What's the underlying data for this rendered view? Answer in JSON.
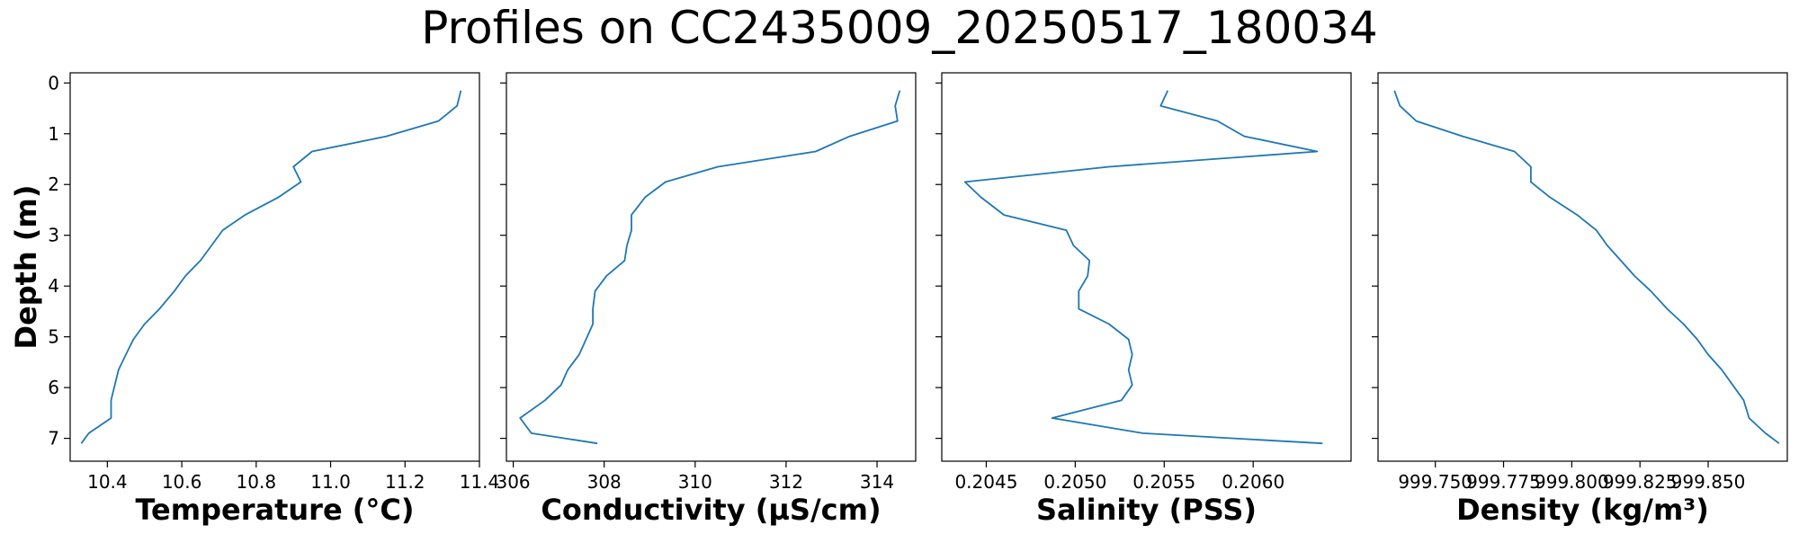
{
  "chart_data": {
    "title": "Profiles on CC2435009_20250517_180034",
    "ylabel": "Depth (m)",
    "y_axis": {
      "ticks": [
        0,
        1,
        2,
        3,
        4,
        5,
        6,
        7
      ],
      "tick_labels": [
        "0",
        "1",
        "2",
        "3",
        "4",
        "5",
        "6",
        "7"
      ],
      "ylim": [
        7.45,
        -0.2
      ],
      "inverted": true
    },
    "depth": [
      0.15,
      0.45,
      0.75,
      1.05,
      1.35,
      1.65,
      1.95,
      2.25,
      2.6,
      2.9,
      3.2,
      3.5,
      3.8,
      4.1,
      4.45,
      4.75,
      5.05,
      5.35,
      5.65,
      5.95,
      6.25,
      6.6,
      6.9,
      7.1
    ],
    "panels": [
      {
        "type": "line",
        "xlabel": "Temperature (°C)",
        "xlim": [
          10.3,
          11.4
        ],
        "x_ticks": [
          10.4,
          10.6,
          10.8,
          11.0,
          11.2,
          11.4
        ],
        "x_tick_labels": [
          "10.4",
          "10.6",
          "10.8",
          "11.0",
          "11.2",
          "11.4"
        ],
        "values": [
          11.35,
          11.34,
          11.29,
          11.15,
          10.95,
          10.9,
          10.92,
          10.86,
          10.77,
          10.71,
          10.68,
          10.65,
          10.61,
          10.58,
          10.54,
          10.5,
          10.47,
          10.45,
          10.43,
          10.42,
          10.41,
          10.41,
          10.35,
          10.33
        ],
        "color": "#1f77b4"
      },
      {
        "type": "line",
        "xlabel": "Conductivity (µS/cm)",
        "xlim": [
          305.85,
          314.85
        ],
        "x_ticks": [
          306,
          308,
          310,
          312,
          314
        ],
        "x_tick_labels": [
          "306",
          "308",
          "310",
          "312",
          "314"
        ],
        "values": [
          314.5,
          314.4,
          314.45,
          313.4,
          312.65,
          310.5,
          309.35,
          308.9,
          308.6,
          308.6,
          308.5,
          308.45,
          308.05,
          307.8,
          307.75,
          307.75,
          307.6,
          307.45,
          307.2,
          307.05,
          306.7,
          306.15,
          306.4,
          307.85
        ],
        "color": "#1f77b4"
      },
      {
        "type": "line",
        "xlabel": "Salinity (PSS)",
        "xlim": [
          0.20425,
          0.20655
        ],
        "x_ticks": [
          0.2045,
          0.205,
          0.2055,
          0.206
        ],
        "x_tick_labels": [
          "0.2045",
          "0.2050",
          "0.2055",
          "0.2060"
        ],
        "values": [
          0.20552,
          0.20548,
          0.2058,
          0.20595,
          0.20636,
          0.20519,
          0.20438,
          0.20447,
          0.2046,
          0.20495,
          0.20499,
          0.20508,
          0.20507,
          0.20502,
          0.20502,
          0.20519,
          0.2053,
          0.20532,
          0.2053,
          0.20532,
          0.20526,
          0.20487,
          0.20538,
          0.20639
        ],
        "color": "#1f77b4"
      },
      {
        "type": "line",
        "xlabel": "Density (kg/m³)",
        "xlim": [
          999.729,
          999.879
        ],
        "x_ticks": [
          999.75,
          999.775,
          999.8,
          999.825,
          999.85
        ],
        "x_tick_labels": [
          "999.750",
          "999.775",
          "999.800",
          "999.825",
          "999.850"
        ],
        "values": [
          999.735,
          999.737,
          999.743,
          999.76,
          999.779,
          999.785,
          999.785,
          999.792,
          999.802,
          999.809,
          999.813,
          999.818,
          999.823,
          999.829,
          999.835,
          999.841,
          999.846,
          999.85,
          999.855,
          999.859,
          999.863,
          999.865,
          999.871,
          999.876
        ],
        "color": "#1f77b4"
      }
    ]
  }
}
